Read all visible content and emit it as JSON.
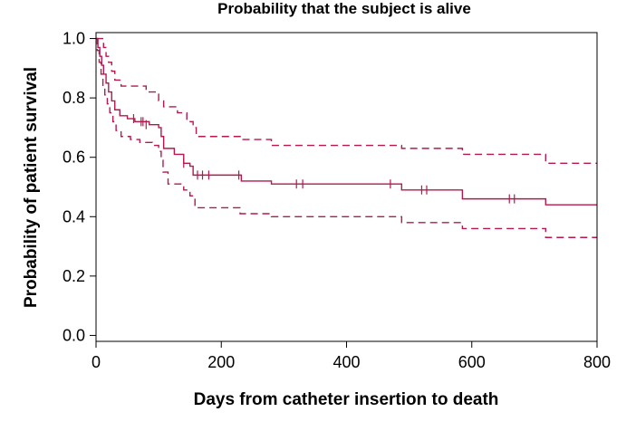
{
  "chart_data": {
    "type": "line",
    "title": "Probability that the subject is alive",
    "xlabel": "Days from catheter insertion to death",
    "ylabel": "Probability of patient survival",
    "xlim": [
      0,
      800
    ],
    "ylim": [
      -0.02,
      1.02
    ],
    "xticks": [
      0,
      200,
      400,
      600,
      800
    ],
    "xtick_labels": [
      "0",
      "200",
      "400",
      "600",
      "800"
    ],
    "yticks": [
      0.0,
      0.2,
      0.4,
      0.6,
      0.8,
      1.0
    ],
    "ytick_labels": [
      "0.0",
      "0.2",
      "0.4",
      "0.6",
      "0.8",
      "1.0"
    ],
    "grid": false,
    "legend": "none",
    "line_color": "#b5174f",
    "series": [
      {
        "style": "solid",
        "steps": [
          [
            0,
            1.0
          ],
          [
            3,
            0.97
          ],
          [
            6,
            0.94
          ],
          [
            9,
            0.91
          ],
          [
            12,
            0.88
          ],
          [
            16,
            0.85
          ],
          [
            20,
            0.82
          ],
          [
            25,
            0.79
          ],
          [
            30,
            0.76
          ],
          [
            38,
            0.74
          ],
          [
            50,
            0.73
          ],
          [
            62,
            0.72
          ],
          [
            75,
            0.72
          ],
          [
            85,
            0.71
          ],
          [
            100,
            0.7
          ],
          [
            104,
            0.67
          ],
          [
            108,
            0.63
          ],
          [
            125,
            0.61
          ],
          [
            140,
            0.58
          ],
          [
            150,
            0.57
          ],
          [
            155,
            0.54
          ],
          [
            220,
            0.54
          ],
          [
            232,
            0.52
          ],
          [
            275,
            0.52
          ],
          [
            280,
            0.51
          ],
          [
            475,
            0.51
          ],
          [
            488,
            0.49
          ],
          [
            560,
            0.49
          ],
          [
            585,
            0.46
          ],
          [
            700,
            0.46
          ],
          [
            718,
            0.44
          ],
          [
            800,
            0.44
          ]
        ],
        "censor_marks": [
          [
            60,
            0.73
          ],
          [
            72,
            0.72
          ],
          [
            75,
            0.72
          ],
          [
            80,
            0.71
          ],
          [
            140,
            0.58
          ],
          [
            162,
            0.54
          ],
          [
            170,
            0.54
          ],
          [
            180,
            0.54
          ],
          [
            228,
            0.54
          ],
          [
            320,
            0.51
          ],
          [
            330,
            0.51
          ],
          [
            470,
            0.51
          ],
          [
            520,
            0.49
          ],
          [
            528,
            0.49
          ],
          [
            660,
            0.46
          ],
          [
            668,
            0.46
          ]
        ]
      },
      {
        "style": "dashed",
        "steps": [
          [
            0,
            1.0
          ],
          [
            8,
            1.0
          ],
          [
            12,
            0.97
          ],
          [
            16,
            0.94
          ],
          [
            20,
            0.92
          ],
          [
            25,
            0.89
          ],
          [
            30,
            0.86
          ],
          [
            40,
            0.84
          ],
          [
            70,
            0.84
          ],
          [
            80,
            0.82
          ],
          [
            95,
            0.82
          ],
          [
            100,
            0.79
          ],
          [
            108,
            0.77
          ],
          [
            130,
            0.75
          ],
          [
            145,
            0.72
          ],
          [
            155,
            0.7
          ],
          [
            160,
            0.67
          ],
          [
            225,
            0.67
          ],
          [
            232,
            0.66
          ],
          [
            275,
            0.66
          ],
          [
            280,
            0.64
          ],
          [
            475,
            0.64
          ],
          [
            488,
            0.63
          ],
          [
            580,
            0.63
          ],
          [
            585,
            0.61
          ],
          [
            710,
            0.61
          ],
          [
            718,
            0.58
          ],
          [
            800,
            0.58
          ]
        ]
      },
      {
        "style": "dashed",
        "steps": [
          [
            0,
            1.0
          ],
          [
            2,
            0.96
          ],
          [
            5,
            0.92
          ],
          [
            8,
            0.88
          ],
          [
            11,
            0.84
          ],
          [
            14,
            0.81
          ],
          [
            18,
            0.78
          ],
          [
            22,
            0.75
          ],
          [
            27,
            0.72
          ],
          [
            32,
            0.69
          ],
          [
            40,
            0.67
          ],
          [
            55,
            0.66
          ],
          [
            70,
            0.65
          ],
          [
            90,
            0.64
          ],
          [
            100,
            0.62
          ],
          [
            104,
            0.59
          ],
          [
            107,
            0.55
          ],
          [
            115,
            0.51
          ],
          [
            140,
            0.49
          ],
          [
            150,
            0.47
          ],
          [
            158,
            0.43
          ],
          [
            220,
            0.43
          ],
          [
            230,
            0.41
          ],
          [
            270,
            0.41
          ],
          [
            280,
            0.4
          ],
          [
            475,
            0.4
          ],
          [
            488,
            0.38
          ],
          [
            580,
            0.38
          ],
          [
            585,
            0.36
          ],
          [
            712,
            0.36
          ],
          [
            718,
            0.33
          ],
          [
            800,
            0.33
          ]
        ]
      }
    ]
  }
}
